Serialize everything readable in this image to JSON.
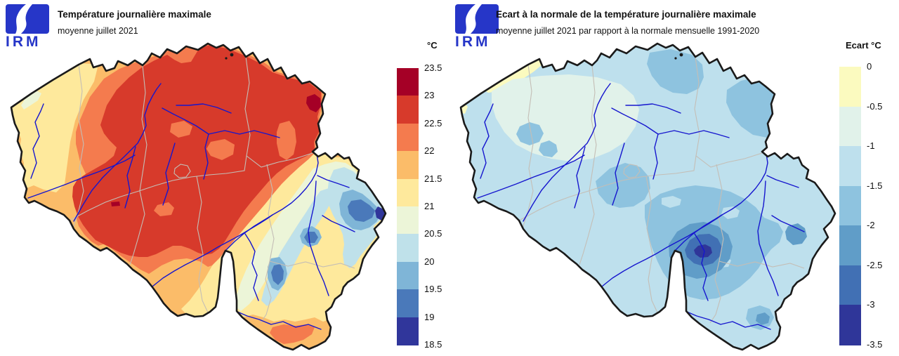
{
  "panels": {
    "left": {
      "logo_text": "IRM",
      "title": "Température journalière maximale",
      "subtitle": "moyenne juillet 2021",
      "legend_unit": "°C",
      "legend_ticks": [
        "23.5",
        "23",
        "22.5",
        "22",
        "21.5",
        "21",
        "20.5",
        "20",
        "19.5",
        "19",
        "18.5"
      ],
      "legend_colors": [
        "#A50026",
        "#D73A2B",
        "#F47B4E",
        "#FBBC69",
        "#FEE99C",
        "#ECF5D8",
        "#BFE1EA",
        "#7FB5D7",
        "#4A79BA",
        "#30369B"
      ]
    },
    "right": {
      "logo_text": "IRM",
      "title": "Ecart à la normale de la température journalière maximale",
      "subtitle": "moyenne juillet 2021 par rapport à la normale mensuelle 1991-2020",
      "legend_unit": "Ecart °C",
      "legend_ticks": [
        "0",
        "-0.5",
        "-1",
        "-1.5",
        "-2",
        "-2.5",
        "-3",
        "-3.5"
      ],
      "legend_colors": [
        "#FBFABF",
        "#E1F2EA",
        "#BEE0ED",
        "#8EC3DF",
        "#609DC8",
        "#4170B4",
        "#2F3699"
      ]
    }
  },
  "map_colors": {
    "country_border": "#1A1A1A",
    "province_border": "#C4BEB6",
    "river": "#1616CE",
    "background": "#FFFFFF",
    "logo_blue": "#2636C8"
  }
}
